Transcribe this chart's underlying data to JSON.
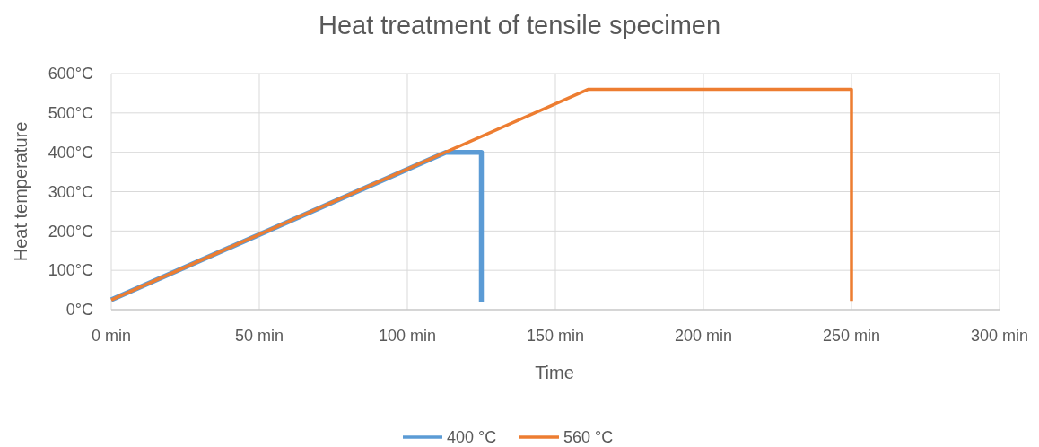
{
  "chart_data": {
    "type": "line",
    "title": "Heat treatment of tensile specimen",
    "xlabel": "Time",
    "ylabel": "Heat temperature",
    "xlim": [
      0,
      300
    ],
    "xticks": [
      {
        "value": 0,
        "label": "0 min"
      },
      {
        "value": 50,
        "label": "50 min"
      },
      {
        "value": 100,
        "label": "100 min"
      },
      {
        "value": 150,
        "label": "150 min"
      },
      {
        "value": 200,
        "label": "200 min"
      },
      {
        "value": 250,
        "label": "250 min"
      },
      {
        "value": 300,
        "label": "300 min"
      }
    ],
    "ylim": [
      0,
      600
    ],
    "yticks": [
      {
        "value": 0,
        "label": "0°C"
      },
      {
        "value": 100,
        "label": "100°C"
      },
      {
        "value": 200,
        "label": "200°C"
      },
      {
        "value": 300,
        "label": "300°C"
      },
      {
        "value": 400,
        "label": "400°C"
      },
      {
        "value": 500,
        "label": "500°C"
      },
      {
        "value": 600,
        "label": "600°C"
      }
    ],
    "grid": true,
    "legend": "bottom",
    "marker": "none",
    "line_style": "solid",
    "series": [
      {
        "name": "400 °C",
        "color": "#5b9bd5",
        "x": [
          0,
          113,
          125,
          125
        ],
        "values": [
          25,
          400,
          400,
          20
        ]
      },
      {
        "name": "560 °C",
        "color": "#ed7d31",
        "x": [
          0,
          161,
          250,
          250
        ],
        "values": [
          25,
          560,
          560,
          22
        ]
      }
    ]
  }
}
